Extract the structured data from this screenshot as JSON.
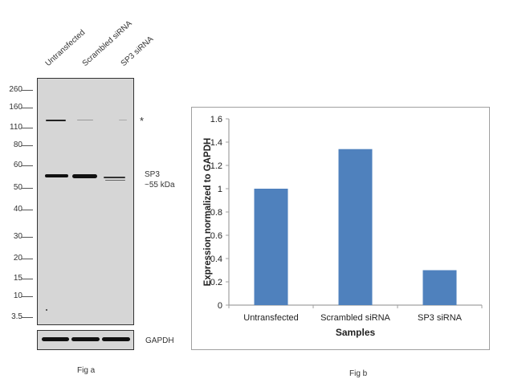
{
  "fig_a": {
    "lanes": [
      "Untransfected",
      "Scrambled siRNA",
      "SP3  siRNA"
    ],
    "markers": [
      "260",
      "160",
      "110",
      "80",
      "60",
      "50",
      "40",
      "30",
      "20",
      "15",
      "10",
      "3.5"
    ],
    "asterisk": "*",
    "target_label_line1": "SP3",
    "target_label_line2": "~55 kDa",
    "loading_control": "GAPDH",
    "caption": "Fig a"
  },
  "fig_b": {
    "caption": "Fig b"
  },
  "chart_data": {
    "type": "bar",
    "title": "",
    "categories": [
      "Untransfected",
      "Scrambled siRNA",
      "SP3 siRNA"
    ],
    "values": [
      1.0,
      1.34,
      0.3
    ],
    "xlabel": "Samples",
    "ylabel": "Expression normalized to GAPDH",
    "ylim": [
      0,
      1.6
    ],
    "yticks": [
      "0",
      "0.2",
      "0.4",
      "0.6",
      "0.8",
      "1",
      "1.2",
      "1.4",
      "1.6"
    ],
    "grid": false,
    "legend": "none",
    "bar_color": "#4f81bd"
  }
}
